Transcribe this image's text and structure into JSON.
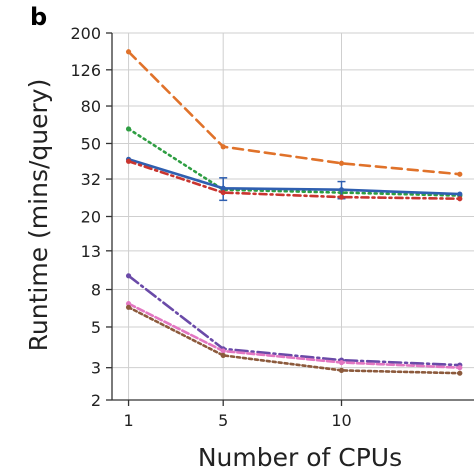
{
  "panel_label": "b",
  "chart_data": {
    "type": "line",
    "title": "",
    "xlabel": "Number of CPUs",
    "ylabel": "Runtime (mins/query)",
    "y_scale": "log",
    "x_ticks": [
      1,
      5,
      10
    ],
    "y_ticks": [
      2,
      3,
      5,
      8,
      13,
      20,
      32,
      50,
      80,
      126,
      200
    ],
    "xlim": [
      0.3,
      15.6
    ],
    "ylim": [
      2,
      200
    ],
    "grid": true,
    "x": [
      1,
      5,
      10,
      15
    ],
    "series": [
      {
        "color": "#e0722a",
        "dash": "10,6",
        "markers": true,
        "values": [
          158,
          48,
          39,
          34
        ]
      },
      {
        "color": "#2e9e42",
        "dash": "2,4",
        "markers": true,
        "values": [
          60,
          28,
          27,
          26
        ]
      },
      {
        "color": "#2f5fb0",
        "dash": "",
        "markers": true,
        "values": [
          41,
          28.5,
          28,
          26.5
        ],
        "error_bars": [
          0,
          4,
          3,
          0
        ]
      },
      {
        "color": "#c9352f",
        "dash": "7,4,2,4",
        "markers": true,
        "values": [
          40,
          27,
          25.5,
          25
        ]
      },
      {
        "color": "#6a4aa8",
        "dash": "12,4,2,4",
        "markers": true,
        "values": [
          9.5,
          3.8,
          3.3,
          3.1
        ]
      },
      {
        "color": "#e377c2",
        "dash": "7,3",
        "markers": true,
        "values": [
          6.7,
          3.7,
          3.2,
          3.0
        ]
      },
      {
        "color": "#8c5a3c",
        "dash": "3,3",
        "markers": true,
        "values": [
          6.4,
          3.5,
          2.9,
          2.8
        ]
      }
    ]
  }
}
